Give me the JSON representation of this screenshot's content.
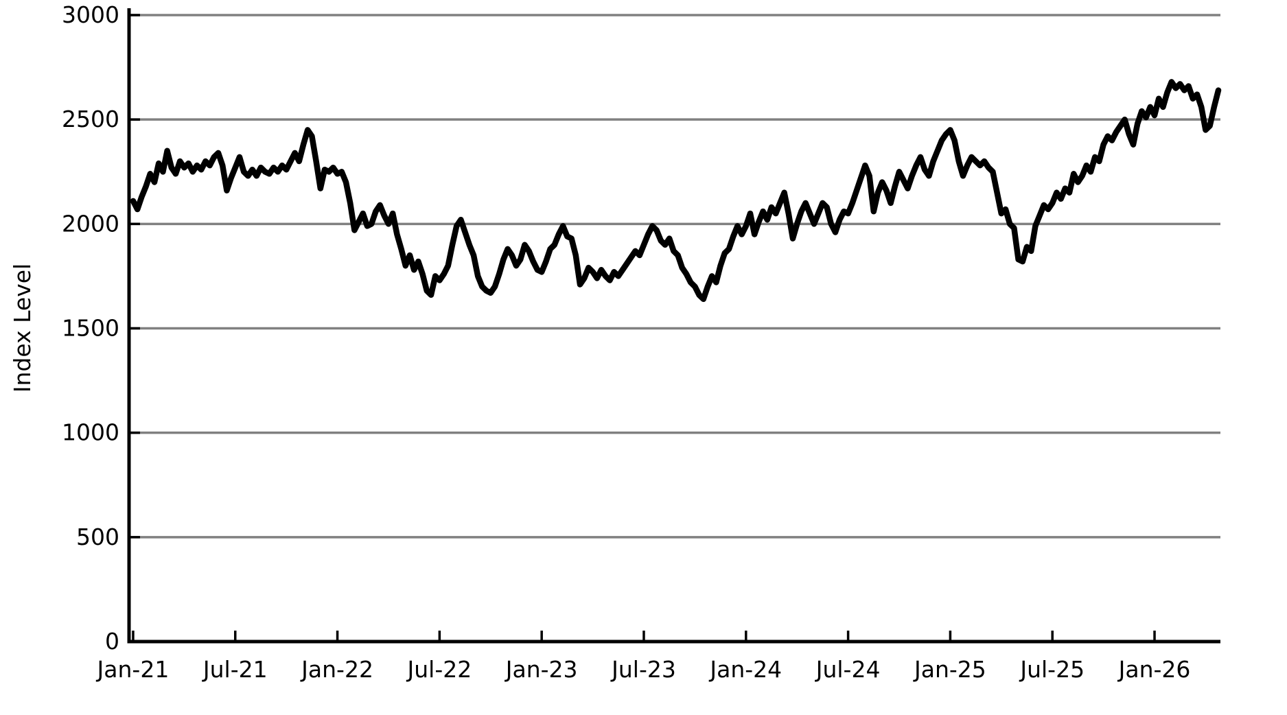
{
  "chart_data": {
    "type": "line",
    "title": "",
    "xlabel": "",
    "ylabel": "Index Level",
    "ylim": [
      0,
      3000
    ],
    "y_ticks": [
      0,
      500,
      1000,
      1500,
      2000,
      2500,
      3000
    ],
    "x_ticks": [
      {
        "x": 2021.0,
        "label": "Jan-21"
      },
      {
        "x": 2021.5,
        "label": "Jul-21"
      },
      {
        "x": 2022.0,
        "label": "Jan-22"
      },
      {
        "x": 2022.5,
        "label": "Jul-22"
      },
      {
        "x": 2023.0,
        "label": "Jan-23"
      },
      {
        "x": 2023.5,
        "label": "Jul-23"
      },
      {
        "x": 2024.0,
        "label": "Jan-24"
      },
      {
        "x": 2024.5,
        "label": "Jul-24"
      },
      {
        "x": 2025.0,
        "label": "Jan-25"
      },
      {
        "x": 2025.5,
        "label": "Jul-25"
      },
      {
        "x": 2026.0,
        "label": "Jan-26"
      }
    ],
    "x_start": 2021.0,
    "x_step_years": 0.02083333,
    "grid": "horizontal",
    "legend_position": "none",
    "styles": {
      "line_color": "#000000",
      "line_width": 8.5,
      "grid_color": "#808080",
      "grid_width": 3.5,
      "axis_color": "#000000",
      "axis_width": 5,
      "background": "#ffffff"
    },
    "series": [
      {
        "name": "Index Level",
        "values": [
          2110,
          2070,
          2130,
          2180,
          2240,
          2200,
          2290,
          2250,
          2350,
          2270,
          2240,
          2300,
          2270,
          2290,
          2250,
          2280,
          2260,
          2300,
          2280,
          2320,
          2340,
          2280,
          2160,
          2220,
          2270,
          2320,
          2250,
          2230,
          2260,
          2230,
          2270,
          2250,
          2240,
          2270,
          2250,
          2280,
          2260,
          2300,
          2340,
          2300,
          2380,
          2450,
          2420,
          2300,
          2170,
          2260,
          2250,
          2270,
          2240,
          2250,
          2200,
          2100,
          1970,
          2010,
          2050,
          1990,
          2000,
          2060,
          2090,
          2040,
          2000,
          2050,
          1950,
          1880,
          1800,
          1850,
          1780,
          1820,
          1760,
          1680,
          1660,
          1750,
          1730,
          1760,
          1800,
          1900,
          1990,
          2020,
          1960,
          1900,
          1850,
          1750,
          1700,
          1680,
          1670,
          1700,
          1760,
          1830,
          1880,
          1850,
          1800,
          1830,
          1900,
          1870,
          1820,
          1780,
          1770,
          1820,
          1880,
          1900,
          1950,
          1990,
          1940,
          1930,
          1850,
          1710,
          1740,
          1790,
          1770,
          1740,
          1780,
          1750,
          1730,
          1770,
          1750,
          1780,
          1810,
          1840,
          1870,
          1850,
          1900,
          1950,
          1990,
          1970,
          1920,
          1900,
          1930,
          1870,
          1850,
          1790,
          1760,
          1720,
          1700,
          1660,
          1640,
          1700,
          1750,
          1720,
          1800,
          1860,
          1880,
          1940,
          1990,
          1950,
          1990,
          2050,
          1950,
          2010,
          2060,
          2020,
          2080,
          2050,
          2100,
          2150,
          2050,
          1930,
          2000,
          2060,
          2100,
          2050,
          2000,
          2050,
          2100,
          2080,
          2000,
          1960,
          2020,
          2060,
          2050,
          2100,
          2160,
          2220,
          2280,
          2230,
          2060,
          2150,
          2200,
          2160,
          2100,
          2180,
          2250,
          2210,
          2170,
          2230,
          2280,
          2320,
          2260,
          2230,
          2300,
          2350,
          2400,
          2430,
          2450,
          2400,
          2300,
          2230,
          2280,
          2320,
          2300,
          2280,
          2300,
          2270,
          2250,
          2150,
          2050,
          2070,
          2000,
          1980,
          1830,
          1820,
          1890,
          1870,
          1990,
          2040,
          2090,
          2070,
          2100,
          2150,
          2120,
          2170,
          2150,
          2240,
          2200,
          2230,
          2280,
          2250,
          2320,
          2300,
          2380,
          2420,
          2400,
          2440,
          2470,
          2500,
          2430,
          2380,
          2480,
          2540,
          2510,
          2560,
          2520,
          2600,
          2560,
          2630,
          2680,
          2650,
          2670,
          2640,
          2660,
          2600,
          2620,
          2560,
          2450,
          2470,
          2560,
          2640
        ]
      }
    ]
  }
}
